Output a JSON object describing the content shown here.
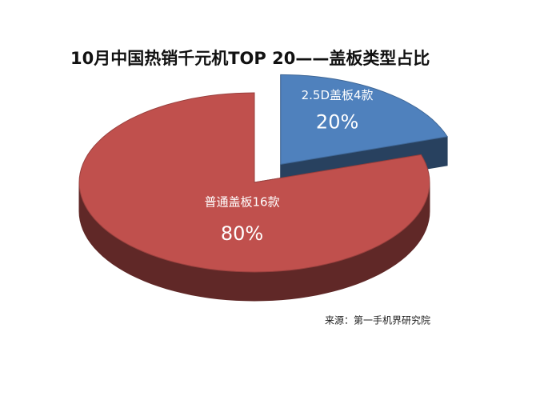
{
  "chart_data": {
    "type": "pie3d",
    "title": "10月中国热销千元机TOP 20——盖板类型占比",
    "categories": [
      "2.5D盖板4款",
      "普通盖板16款"
    ],
    "values": [
      20,
      80
    ],
    "value_labels": [
      "20%",
      "80%"
    ],
    "series_colors": [
      "#4f81bd",
      "#c0504d"
    ],
    "source": "来源：第一手机界研究院"
  }
}
